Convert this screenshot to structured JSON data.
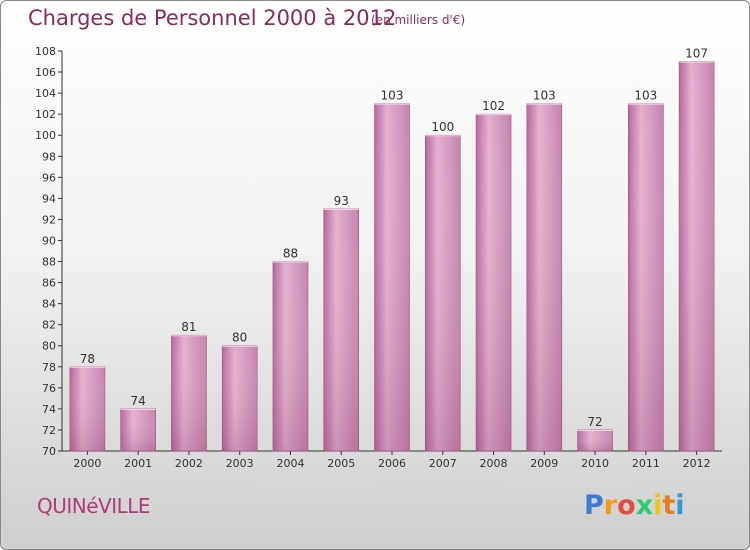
{
  "chart_data": {
    "type": "bar",
    "title": "Charges de Personnel 2000 à 2012",
    "subtitle": "(en milliers d'€)",
    "categories": [
      "2000",
      "2001",
      "2002",
      "2003",
      "2004",
      "2005",
      "2006",
      "2007",
      "2008",
      "2009",
      "2010",
      "2011",
      "2012"
    ],
    "values": [
      78,
      74,
      81,
      80,
      88,
      93,
      103,
      100,
      102,
      103,
      72,
      103,
      107
    ],
    "ylim": [
      70,
      108
    ],
    "ytick_step": 2,
    "grid": false,
    "colors": {
      "bar": "#c97aa8",
      "bar_light": "#e2aed0",
      "bar_dark": "#a95688",
      "title": "#8a2b5d"
    }
  },
  "footer": {
    "commune": "QUINéVILLE",
    "logo": {
      "letters": [
        "P",
        "r",
        "o",
        "x",
        "i",
        "t",
        "i"
      ],
      "colors": [
        "#3a7bd5",
        "#f39c12",
        "#e74c3c",
        "#2ecc71",
        "#f1c40f",
        "#e67e22",
        "#3498db"
      ]
    }
  }
}
